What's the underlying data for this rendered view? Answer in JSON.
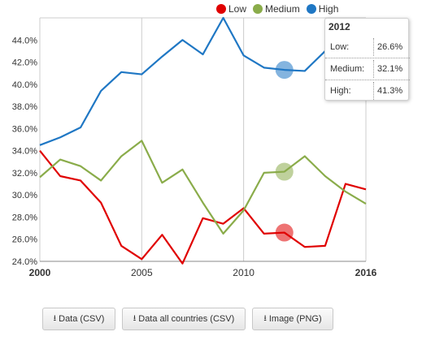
{
  "legend": [
    {
      "name": "Low",
      "color": "#e00000"
    },
    {
      "name": "Medium",
      "color": "#8aac4a"
    },
    {
      "name": "High",
      "color": "#1f77c4"
    }
  ],
  "tooltip": {
    "title": "2012",
    "rows": [
      {
        "label": "Low:",
        "value": "26.6%"
      },
      {
        "label": "Medium:",
        "value": "32.1%"
      },
      {
        "label": "High:",
        "value": "41.3%"
      }
    ]
  },
  "buttons": [
    {
      "label": "Data (CSV)",
      "icon": "download-icon"
    },
    {
      "label": "Data all countries (CSV)",
      "icon": "download-icon"
    },
    {
      "label": "Image (PNG)",
      "icon": "download-icon"
    }
  ],
  "chart_data": {
    "type": "line",
    "x": [
      2000,
      2001,
      2002,
      2003,
      2004,
      2005,
      2006,
      2007,
      2008,
      2009,
      2010,
      2011,
      2012,
      2013,
      2014,
      2015,
      2016
    ],
    "xticks": [
      "2000",
      "2005",
      "2010",
      "2016"
    ],
    "xlim": [
      2000,
      2016
    ],
    "ylim": [
      24,
      46
    ],
    "yticks": [
      "24.0%",
      "26.0%",
      "28.0%",
      "30.0%",
      "32.0%",
      "34.0%",
      "36.0%",
      "38.0%",
      "40.0%",
      "42.0%",
      "44.0%"
    ],
    "grid": "vertical",
    "highlight_x": 2012,
    "series": [
      {
        "name": "Low",
        "color": "#e00000",
        "values": [
          34.0,
          31.7,
          31.3,
          29.3,
          25.4,
          24.2,
          26.4,
          23.8,
          27.9,
          27.4,
          28.8,
          26.5,
          26.6,
          25.3,
          25.4,
          31.0,
          30.5
        ]
      },
      {
        "name": "Medium",
        "color": "#8aac4a",
        "values": [
          31.6,
          33.2,
          32.6,
          31.3,
          33.5,
          34.9,
          31.1,
          32.3,
          29.3,
          26.5,
          28.6,
          32.0,
          32.1,
          33.5,
          31.7,
          30.3,
          29.2
        ]
      },
      {
        "name": "High",
        "color": "#1f77c4",
        "values": [
          34.5,
          35.2,
          36.1,
          39.4,
          41.1,
          40.9,
          42.5,
          44.0,
          42.7,
          46.0,
          42.6,
          41.5,
          41.3,
          41.2,
          43.0,
          45.5,
          45.0
        ]
      }
    ]
  }
}
